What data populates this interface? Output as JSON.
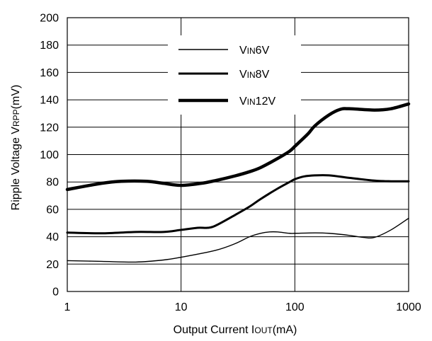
{
  "chart_data": {
    "type": "line",
    "title": "",
    "xlabel": {
      "main": "Output Current I",
      "sub": "OUT",
      "unit": "(mA)"
    },
    "ylabel": {
      "main": "Ripple Voltage V",
      "sub": "RPP",
      "unit": "(mV)"
    },
    "x_scale": "log",
    "xlim": [
      1,
      1000
    ],
    "ylim": [
      0,
      200
    ],
    "x_ticks": [
      "1",
      "10",
      "100",
      "1000"
    ],
    "y_ticks": [
      "0",
      "20",
      "40",
      "60",
      "80",
      "100",
      "120",
      "140",
      "160",
      "180",
      "200"
    ],
    "grid": true,
    "legend_position": "top-center",
    "series": [
      {
        "name": "VIN6V",
        "label_main": "V",
        "label_sub": "IN",
        "label_rest": "6V",
        "weight": "thin",
        "x": [
          1,
          2,
          4,
          7,
          10,
          20,
          30,
          40,
          50,
          60,
          70,
          90,
          100,
          150,
          200,
          300,
          400,
          500,
          700,
          1000
        ],
        "y": [
          22.5,
          22,
          21.5,
          23,
          25,
          30,
          35,
          40,
          42.5,
          43.5,
          43.5,
          42.5,
          42.5,
          42.8,
          42.5,
          41,
          39.5,
          39.5,
          45,
          53.5
        ]
      },
      {
        "name": "VIN8V",
        "label_main": "V",
        "label_sub": "IN",
        "label_rest": "8V",
        "weight": "medium",
        "x": [
          1,
          2,
          4,
          7,
          10,
          14,
          17,
          20,
          30,
          40,
          50,
          70,
          90,
          100,
          120,
          150,
          200,
          300,
          500,
          700,
          1000
        ],
        "y": [
          43,
          42.5,
          43.5,
          43.5,
          45,
          46.5,
          46.5,
          48,
          56,
          62,
          67.5,
          75,
          80,
          82,
          84,
          84.8,
          84.8,
          83,
          81,
          80.5,
          80.5
        ]
      },
      {
        "name": "VIN12V",
        "label_main": "V",
        "label_sub": "IN",
        "label_rest": "12V",
        "weight": "thick",
        "x": [
          1,
          2,
          3,
          5,
          7,
          10,
          15,
          20,
          30,
          40,
          50,
          70,
          90,
          100,
          130,
          150,
          200,
          250,
          300,
          500,
          700,
          1000
        ],
        "y": [
          74.5,
          79,
          80.5,
          80.5,
          79,
          77.5,
          79,
          81,
          84.5,
          87.5,
          90.5,
          97,
          102.5,
          106,
          115,
          121,
          129,
          133,
          133.5,
          132.5,
          133.5,
          137
        ]
      }
    ]
  }
}
